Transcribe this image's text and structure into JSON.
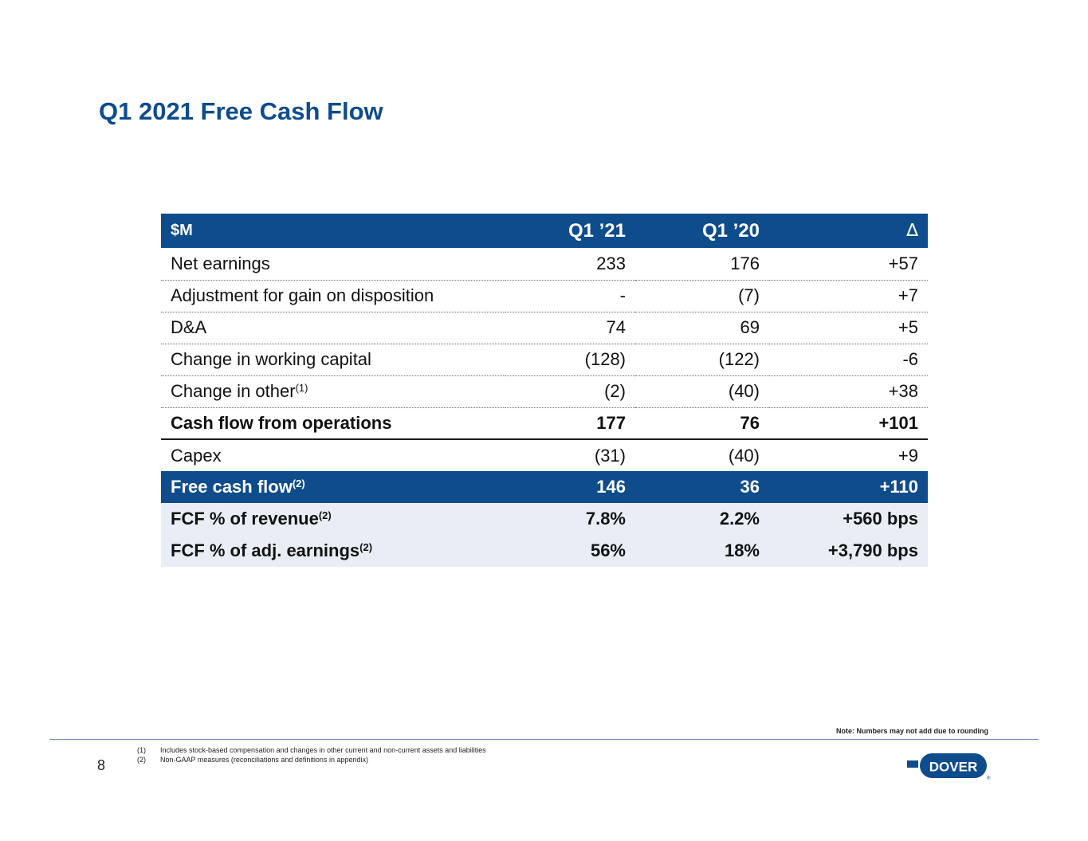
{
  "title": "Q1 2021 Free Cash Flow",
  "table": {
    "header": {
      "label": "$M",
      "col1": "Q1 ’21",
      "col2": "Q1 ’20",
      "col3": "∆"
    },
    "rows": [
      {
        "label": "Net earnings",
        "sup": "",
        "q1_21": "233",
        "q1_20": "176",
        "delta": "+57"
      },
      {
        "label": "Adjustment for gain on disposition",
        "sup": "",
        "q1_21": "-",
        "q1_20": "(7)",
        "delta": "+7"
      },
      {
        "label": "D&A",
        "sup": "",
        "q1_21": "74",
        "q1_20": "69",
        "delta": "+5"
      },
      {
        "label": "Change in working capital",
        "sup": "",
        "q1_21": "(128)",
        "q1_20": "(122)",
        "delta": "-6"
      },
      {
        "label": "Change in other",
        "sup": "(1)",
        "q1_21": "(2)",
        "q1_20": "(40)",
        "delta": "+38"
      },
      {
        "label": "Cash flow from operations",
        "sup": "",
        "q1_21": "177",
        "q1_20": "76",
        "delta": "+101"
      },
      {
        "label": "Capex",
        "sup": "",
        "q1_21": "(31)",
        "q1_20": "(40)",
        "delta": "+9"
      },
      {
        "label": "Free cash flow",
        "sup": "(2)",
        "q1_21": "146",
        "q1_20": "36",
        "delta": "+110"
      },
      {
        "label": "FCF % of revenue",
        "sup": "(2)",
        "q1_21": "7.8%",
        "q1_20": "2.2%",
        "delta": "+560 bps"
      },
      {
        "label": "FCF % of adj. earnings",
        "sup": "(2)",
        "q1_21": "56%",
        "q1_20": "18%",
        "delta": "+3,790 bps"
      }
    ]
  },
  "note": "Note: Numbers may not add due to rounding",
  "page_number": "8",
  "footnotes": [
    {
      "mark": "(1)",
      "text": "Includes stock-based compensation and changes in other current and non-current assets and liabilities"
    },
    {
      "mark": "(2)",
      "text": "Non-GAAP measures (reconciliations and definitions in appendix)"
    }
  ],
  "logo": {
    "text": "DOVER",
    "registered": "®"
  },
  "colors": {
    "brand_blue": "#0e4c8c",
    "light_row": "#e9eef6"
  }
}
